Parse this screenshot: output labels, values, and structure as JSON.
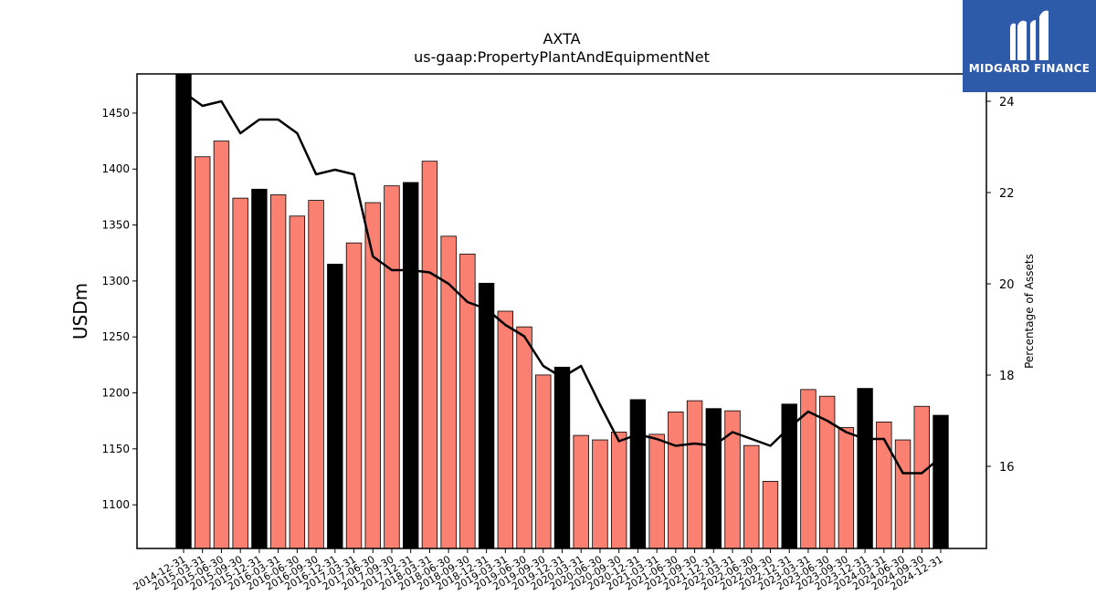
{
  "chart_data": {
    "type": "bar",
    "title": "AXTA",
    "subtitle": "us-gaap:PropertyPlantAndEquipmentNet",
    "ylabel": "USDm",
    "y2label": "Percentage of Assets",
    "ylim": [
      1061,
      1485
    ],
    "y2lim": [
      14.2,
      24.6
    ],
    "yticks": [
      1100,
      1150,
      1200,
      1250,
      1300,
      1350,
      1400,
      1450
    ],
    "y2ticks": [
      16,
      18,
      20,
      22,
      24
    ],
    "colors": {
      "annual": "#000000",
      "quarter": "#fa8072",
      "line": "#000000"
    },
    "categories": [
      "2014-12-31",
      "2015-03-31",
      "2015-06-30",
      "2015-09-30",
      "2015-12-31",
      "2016-03-31",
      "2016-06-30",
      "2016-09-30",
      "2016-12-31",
      "2017-03-31",
      "2017-06-30",
      "2017-09-30",
      "2017-12-31",
      "2018-03-31",
      "2018-06-30",
      "2018-09-30",
      "2018-12-31",
      "2019-03-31",
      "2019-06-30",
      "2019-09-30",
      "2019-12-31",
      "2020-03-31",
      "2020-06-30",
      "2020-09-30",
      "2020-12-31",
      "2021-03-31",
      "2021-06-30",
      "2021-09-30",
      "2021-12-31",
      "2022-03-31",
      "2022-06-30",
      "2022-09-30",
      "2022-12-31",
      "2023-03-31",
      "2023-06-30",
      "2023-09-30",
      "2023-12-31",
      "2024-03-31",
      "2024-06-30",
      "2024-09-30",
      "2024-12-31"
    ],
    "series": [
      {
        "values": [
          1485,
          1411,
          1425,
          1374,
          1382,
          1377,
          1358,
          1372,
          1315,
          1334,
          1370,
          1385,
          1388,
          1407,
          1340,
          1324,
          1298,
          1273,
          1259,
          1216,
          1223,
          1162,
          1158,
          1165,
          1194,
          1163,
          1183,
          1193,
          1186,
          1184,
          1153,
          1121,
          1190,
          1203,
          1197,
          1169,
          1204,
          1174,
          1158,
          1188,
          1180
        ],
        "annual": [
          true,
          false,
          false,
          false,
          true,
          false,
          false,
          false,
          true,
          false,
          false,
          false,
          true,
          false,
          false,
          false,
          true,
          false,
          false,
          false,
          true,
          false,
          false,
          false,
          true,
          false,
          false,
          false,
          true,
          false,
          false,
          false,
          true,
          false,
          false,
          false,
          true,
          false,
          false,
          false,
          true
        ]
      },
      {
        "axis": "right",
        "values": [
          24.2,
          23.9,
          24.0,
          23.3,
          23.6,
          23.6,
          23.3,
          22.4,
          22.5,
          22.4,
          20.6,
          20.3,
          20.3,
          20.25,
          20.0,
          19.6,
          19.45,
          19.1,
          18.85,
          18.2,
          17.95,
          18.2,
          17.35,
          16.55,
          16.7,
          16.6,
          16.45,
          16.5,
          16.45,
          16.75,
          16.6,
          16.45,
          16.85,
          17.2,
          17.0,
          16.75,
          16.6,
          16.6,
          15.85,
          15.85,
          16.2
        ]
      }
    ]
  },
  "logo": {
    "text": "MIDGARD FINANCE"
  }
}
